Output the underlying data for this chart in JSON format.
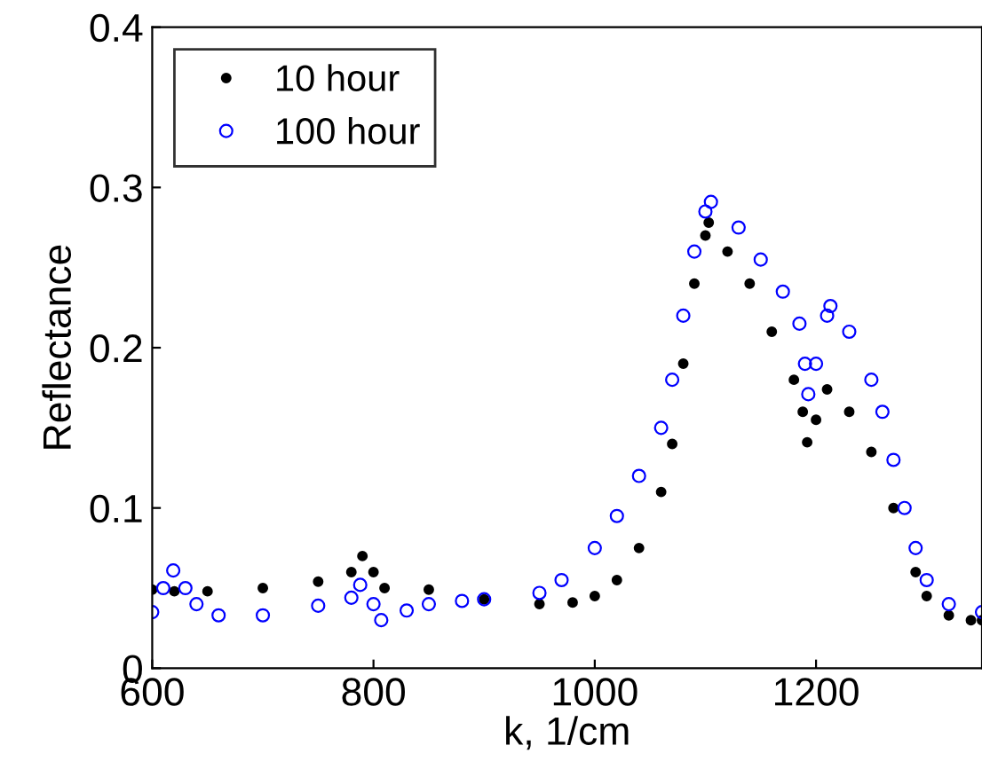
{
  "chart_data": {
    "type": "scatter",
    "xlabel": "k, 1/cm",
    "ylabel": "Reflectance",
    "xlim": [
      600,
      1350
    ],
    "ylim": [
      0,
      0.4
    ],
    "xticks": [
      600,
      800,
      1000,
      1200
    ],
    "yticks": [
      0,
      0.1,
      0.2,
      0.3,
      0.4
    ],
    "grid": false,
    "legend": "top left",
    "marker": "circle",
    "series": [
      {
        "name": "10 hour",
        "color": "#000000",
        "x": [
          600,
          620,
          650,
          700,
          750,
          780,
          790,
          800,
          810,
          850,
          900,
          950,
          980,
          1000,
          1020,
          1040,
          1060,
          1070,
          1080,
          1090,
          1100,
          1103,
          1120,
          1140,
          1160,
          1180,
          1188,
          1192,
          1200,
          1210,
          1230,
          1250,
          1270,
          1290,
          1300,
          1320,
          1340,
          1350
        ],
        "values": [
          0.049,
          0.048,
          0.048,
          0.05,
          0.054,
          0.06,
          0.07,
          0.06,
          0.05,
          0.049,
          0.043,
          0.04,
          0.041,
          0.045,
          0.055,
          0.075,
          0.11,
          0.14,
          0.19,
          0.24,
          0.27,
          0.278,
          0.26,
          0.24,
          0.21,
          0.18,
          0.16,
          0.141,
          0.155,
          0.174,
          0.16,
          0.135,
          0.1,
          0.06,
          0.045,
          0.033,
          0.03,
          0.03
        ]
      },
      {
        "name": "100 hour",
        "color": "#0000ff",
        "x": [
          600,
          610,
          619,
          630,
          640,
          660,
          700,
          750,
          780,
          788,
          800,
          807,
          830,
          850,
          880,
          900,
          950,
          970,
          1000,
          1020,
          1040,
          1060,
          1070,
          1080,
          1090,
          1100,
          1105,
          1130,
          1150,
          1170,
          1185,
          1190,
          1193,
          1200,
          1210,
          1213,
          1230,
          1250,
          1260,
          1270,
          1280,
          1290,
          1300,
          1320,
          1350
        ],
        "values": [
          0.035,
          0.05,
          0.061,
          0.05,
          0.04,
          0.033,
          0.033,
          0.039,
          0.044,
          0.052,
          0.04,
          0.03,
          0.036,
          0.04,
          0.042,
          0.043,
          0.047,
          0.055,
          0.075,
          0.095,
          0.12,
          0.15,
          0.18,
          0.22,
          0.26,
          0.285,
          0.291,
          0.275,
          0.255,
          0.235,
          0.215,
          0.19,
          0.171,
          0.19,
          0.22,
          0.226,
          0.21,
          0.18,
          0.16,
          0.13,
          0.1,
          0.075,
          0.055,
          0.04,
          0.035
        ]
      }
    ]
  }
}
